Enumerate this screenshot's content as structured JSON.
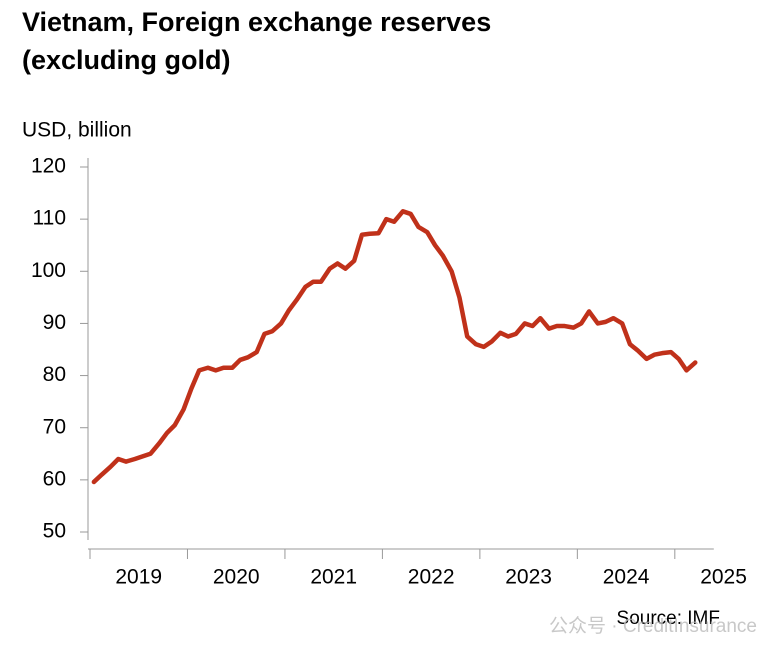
{
  "chart_data": {
    "type": "line",
    "title": [
      "Vietnam, Foreign exchange reserves",
      "(excluding gold)"
    ],
    "y_label": "USD, billion",
    "source": "Source: IMF",
    "watermark": "公众号 · CreditInsurance",
    "x": [
      2019.04,
      2019.12,
      2019.21,
      2019.29,
      2019.37,
      2019.46,
      2019.54,
      2019.62,
      2019.71,
      2019.79,
      2019.87,
      2019.96,
      2020.04,
      2020.12,
      2020.21,
      2020.29,
      2020.37,
      2020.46,
      2020.54,
      2020.62,
      2020.71,
      2020.79,
      2020.87,
      2020.96,
      2021.04,
      2021.12,
      2021.21,
      2021.29,
      2021.37,
      2021.46,
      2021.54,
      2021.62,
      2021.71,
      2021.79,
      2021.87,
      2021.96,
      2022.04,
      2022.12,
      2022.21,
      2022.29,
      2022.37,
      2022.46,
      2022.54,
      2022.62,
      2022.71,
      2022.79,
      2022.87,
      2022.96,
      2023.04,
      2023.12,
      2023.21,
      2023.29,
      2023.37,
      2023.46,
      2023.54,
      2023.62,
      2023.71,
      2023.79,
      2023.87,
      2023.96,
      2024.04,
      2024.12,
      2024.21,
      2024.29,
      2024.37,
      2024.46,
      2024.54,
      2024.62,
      2024.71,
      2024.79,
      2024.87,
      2024.96,
      2025.04,
      2025.12,
      2025.21
    ],
    "series": [
      {
        "name": "Foreign exchange reserves",
        "color": "#c0311a",
        "values": [
          59.6,
          61,
          62.5,
          64,
          63.5,
          64,
          64.5,
          65,
          67,
          69,
          70.5,
          73.5,
          77.5,
          81,
          81.5,
          81,
          81.5,
          81.5,
          83,
          83.5,
          84.5,
          88,
          88.5,
          90,
          92.5,
          94.5,
          97,
          98,
          98,
          100.5,
          101.5,
          100.5,
          102,
          107,
          107.2,
          107.3,
          110,
          109.5,
          111.5,
          111,
          108.5,
          107.5,
          105,
          103,
          100,
          95,
          87.5,
          86,
          85.5,
          86.5,
          88.2,
          87.5,
          88,
          90,
          89.5,
          91,
          89,
          89.5,
          89.5,
          89.2,
          90,
          92.3,
          90,
          90.3,
          91,
          90,
          86,
          84.8,
          83.2,
          84,
          84.3,
          84.5,
          83.2,
          81,
          82.5
        ]
      }
    ],
    "xlim": [
      2019,
      2025.4
    ],
    "xticks": [
      2019,
      2020,
      2021,
      2022,
      2023,
      2024,
      2025
    ],
    "ylim": [
      50,
      120
    ],
    "yticks": [
      50,
      60,
      70,
      80,
      90,
      100,
      110,
      120
    ]
  }
}
